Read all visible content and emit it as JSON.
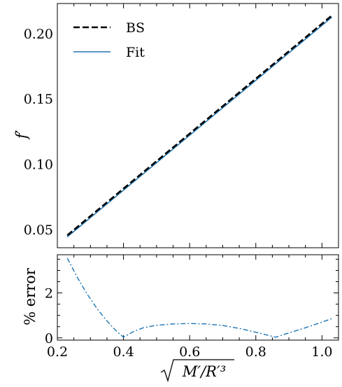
{
  "chart_data": [
    {
      "type": "line",
      "ylabel": "f′",
      "xlim": [
        0.2,
        1.05
      ],
      "ylim": [
        0.036,
        0.223
      ],
      "yticks": [
        "0.05",
        "0.10",
        "0.15",
        "0.20"
      ],
      "ytick_values": [
        0.05,
        0.1,
        0.15,
        0.2
      ],
      "legend_position": "top-left",
      "series": [
        {
          "name": "BS",
          "style": "dashed",
          "color": "#000000",
          "x": [
            0.23,
            1.03
          ],
          "y": [
            0.0455,
            0.2138
          ]
        },
        {
          "name": "Fit",
          "style": "solid",
          "color": "#1f77b4",
          "x": [
            0.23,
            1.03
          ],
          "y": [
            0.0443,
            0.2125
          ]
        }
      ]
    },
    {
      "type": "line",
      "ylabel": "% error",
      "xlabel": "√(M′/R′³)",
      "xlim": [
        0.2,
        1.05
      ],
      "ylim": [
        -0.1,
        3.7
      ],
      "xticks": [
        "0.2",
        "0.4",
        "0.6",
        "0.8",
        "1.0"
      ],
      "xtick_values": [
        0.2,
        0.4,
        0.6,
        0.8,
        1.0
      ],
      "yticks": [
        "0",
        "2"
      ],
      "ytick_values": [
        0,
        2
      ],
      "series": [
        {
          "style": "dashdot",
          "color": "#1f77b4",
          "x": [
            0.23,
            0.26,
            0.29,
            0.32,
            0.35,
            0.38,
            0.4,
            0.43,
            0.46,
            0.5,
            0.55,
            0.6,
            0.65,
            0.7,
            0.75,
            0.8,
            0.86,
            0.9,
            0.95,
            1.0,
            1.03
          ],
          "y": [
            3.55,
            2.7,
            1.95,
            1.3,
            0.75,
            0.28,
            0.03,
            0.28,
            0.45,
            0.56,
            0.62,
            0.64,
            0.62,
            0.55,
            0.42,
            0.25,
            0.03,
            0.22,
            0.45,
            0.7,
            0.86
          ]
        }
      ]
    }
  ]
}
